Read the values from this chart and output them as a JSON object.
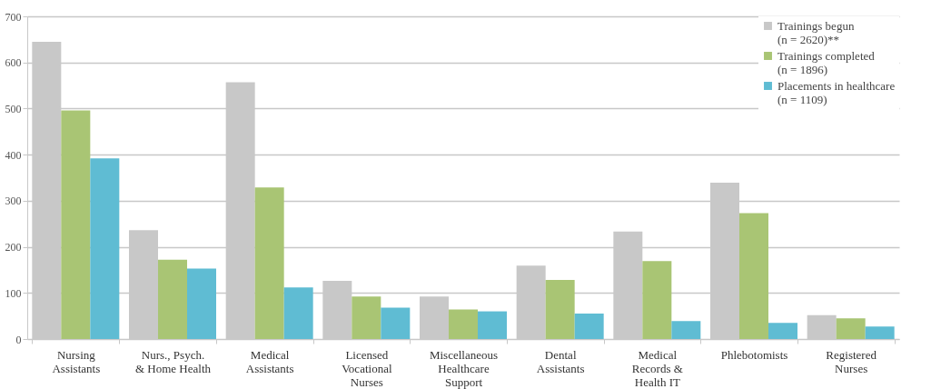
{
  "chart_data": {
    "type": "bar",
    "categories": [
      "Nursing Assistants",
      "Nurs., Psych. & Home Health",
      "Medical Assistants",
      "Licensed Vocational Nurses",
      "Miscellaneous Healthcare Support",
      "Dental Assistants",
      "Medical Records & Health IT",
      "Phlebotomists",
      "Registered Nurses"
    ],
    "series": [
      {
        "name": "Trainings begun (n = 2620)**",
        "color": "#c8c8c8",
        "values": [
          645,
          236,
          557,
          126,
          92,
          159,
          233,
          339,
          52
        ]
      },
      {
        "name": "Trainings completed (n = 1896)",
        "color": "#a9c574",
        "values": [
          496,
          172,
          329,
          92,
          64,
          128,
          169,
          273,
          45
        ]
      },
      {
        "name": "Placements in healthcare (n = 1109)",
        "color": "#5fbcd3",
        "values": [
          392,
          153,
          112,
          68,
          60,
          55,
          39,
          35,
          27
        ]
      }
    ],
    "ylim": [
      0,
      700
    ],
    "yticks": [
      0,
      100,
      200,
      300,
      400,
      500,
      600,
      700
    ],
    "grid": "y",
    "legend": "top right"
  }
}
